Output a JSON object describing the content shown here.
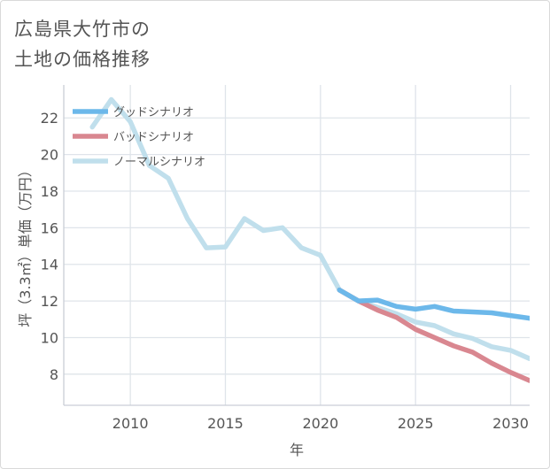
{
  "title_lines": [
    "広島県大竹市の",
    "土地の価格推移"
  ],
  "chart_data": {
    "type": "line",
    "xlabel": "年",
    "ylabel": "坪（3.3㎡）単価（万円）",
    "xlim": [
      2006.5,
      2031
    ],
    "ylim": [
      6.3,
      23.8
    ],
    "x_ticks": [
      2010,
      2015,
      2020,
      2025,
      2030
    ],
    "y_ticks": [
      8,
      10,
      12,
      14,
      16,
      18,
      20,
      22
    ],
    "grid": true,
    "legend_position": "top-left",
    "series": [
      {
        "name": "グッドシナリオ",
        "color": "#6cb8ea",
        "x": [
          2021,
          2022,
          2023,
          2024,
          2025,
          2026,
          2027,
          2028,
          2029,
          2030,
          2031
        ],
        "y": [
          12.6,
          12.0,
          12.05,
          11.7,
          11.55,
          11.7,
          11.45,
          11.4,
          11.35,
          11.2,
          11.05
        ]
      },
      {
        "name": "バッドシナリオ",
        "color": "#d98790",
        "x": [
          2021,
          2022,
          2023,
          2024,
          2025,
          2026,
          2027,
          2028,
          2029,
          2030,
          2031
        ],
        "y": [
          12.6,
          12.0,
          11.5,
          11.1,
          10.45,
          10.0,
          9.55,
          9.2,
          8.6,
          8.1,
          7.65
        ]
      },
      {
        "name": "ノーマルシナリオ",
        "color": "#c0dfec",
        "x": [
          2008,
          2009,
          2010,
          2011,
          2012,
          2013,
          2014,
          2015,
          2016,
          2017,
          2018,
          2019,
          2020,
          2021,
          2022,
          2023,
          2024,
          2025,
          2026,
          2027,
          2028,
          2029,
          2030,
          2031
        ],
        "y": [
          21.5,
          23.0,
          21.8,
          19.4,
          18.7,
          16.5,
          14.9,
          14.95,
          16.5,
          15.85,
          16.0,
          14.9,
          14.5,
          12.6,
          12.0,
          11.65,
          11.3,
          10.85,
          10.65,
          10.2,
          9.95,
          9.5,
          9.3,
          8.85
        ]
      }
    ]
  }
}
